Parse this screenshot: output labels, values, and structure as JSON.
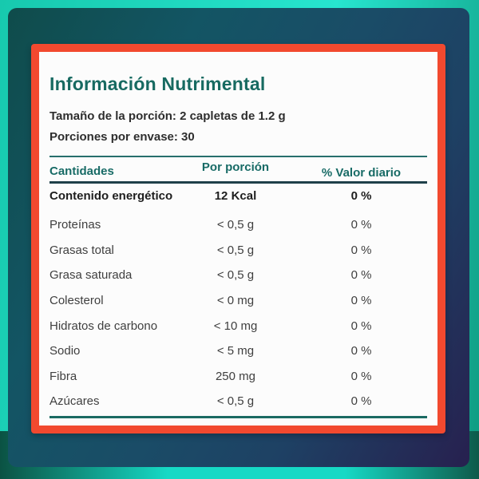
{
  "background": {
    "outer_turquoise": "#27e5cf",
    "panel_gradient_start": "#0f4c4b",
    "panel_gradient_end": "#27204f"
  },
  "label": {
    "frame_color": "#f2492f",
    "heading_color": "#176a61",
    "title": "Información Nutrimental",
    "serving_size": "Tamaño de la porción: 2 capletas de 1.2 g",
    "servings_per_container": "Porciones por envase: 30",
    "table": {
      "headers": {
        "amounts": "Cantidades",
        "per_serving": "Por porción",
        "daily_value": "% Valor diario"
      },
      "rows": [
        {
          "name": "Contenido energético",
          "amount": "12 Kcal",
          "daily": "0 %"
        },
        {
          "name": "Proteínas",
          "amount": "< 0,5 g",
          "daily": "0 %"
        },
        {
          "name": "Grasas total",
          "amount": "< 0,5 g",
          "daily": "0 %"
        },
        {
          "name": "Grasa saturada",
          "amount": "< 0,5 g",
          "daily": "0 %"
        },
        {
          "name": "Colesterol",
          "amount": "< 0 mg",
          "daily": "0 %"
        },
        {
          "name": "Hidratos de carbono",
          "amount": "< 10 mg",
          "daily": "0 %"
        },
        {
          "name": "Sodio",
          "amount": "< 5 mg",
          "daily": "0 %"
        },
        {
          "name": "Fibra",
          "amount": "250 mg",
          "daily": "0 %"
        },
        {
          "name": "Azúcares",
          "amount": "< 0,5 g",
          "daily": "0 %"
        }
      ]
    }
  }
}
